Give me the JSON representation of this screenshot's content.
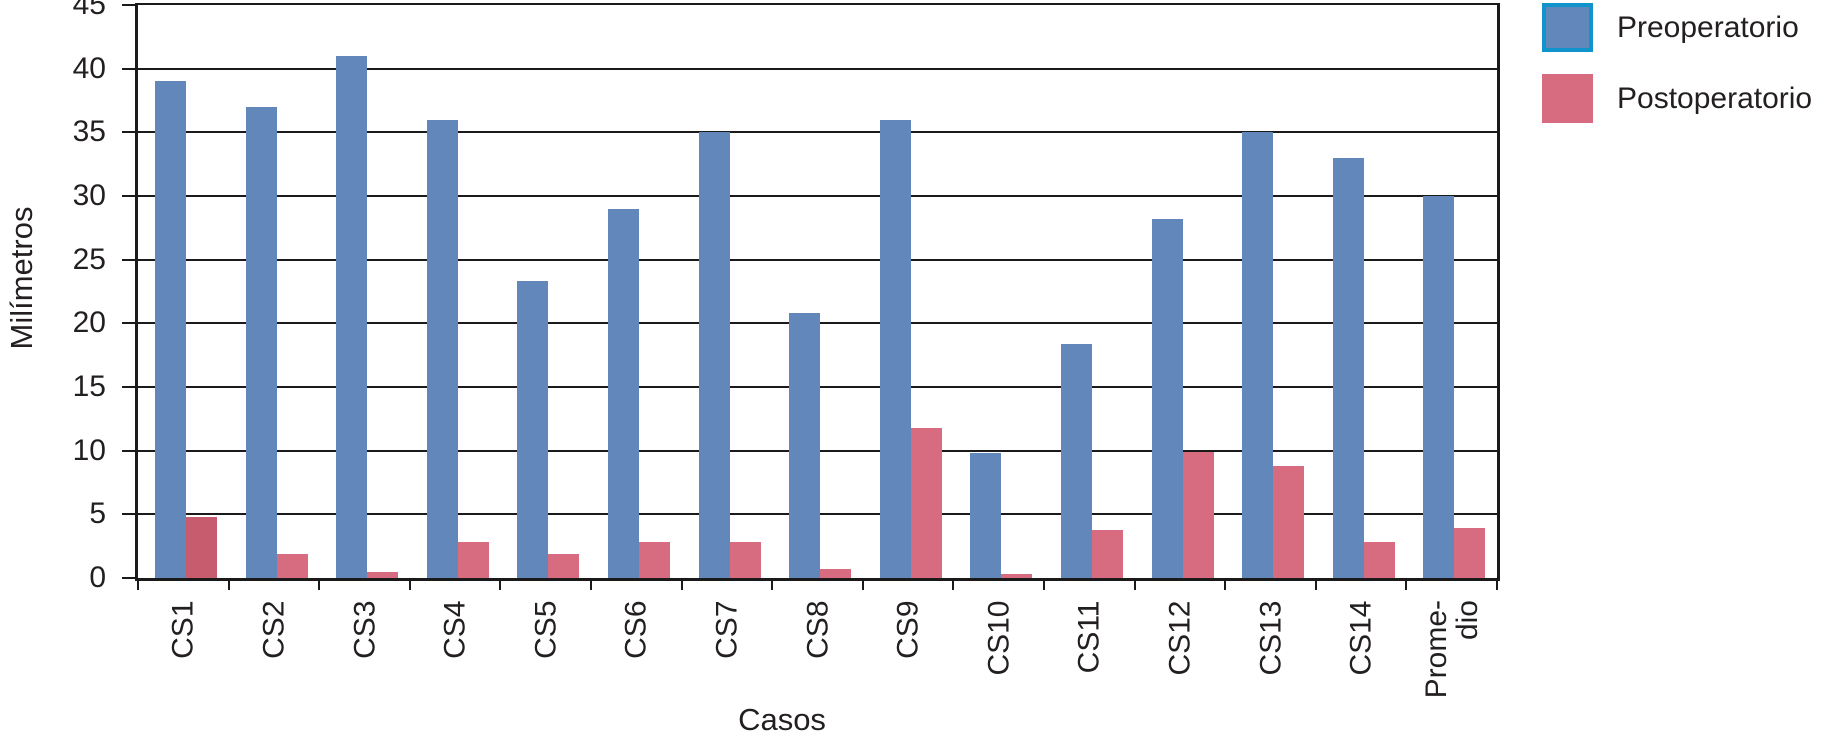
{
  "chart_data": {
    "type": "bar",
    "title": "",
    "xlabel": "Casos",
    "ylabel": "Milímetros",
    "ylim": [
      0,
      45
    ],
    "yticks": [
      0,
      5,
      10,
      15,
      20,
      25,
      30,
      35,
      40,
      45
    ],
    "grid": "horizontal gridlines every 5 units, black",
    "categories": [
      "CS1",
      "CS2",
      "CS3",
      "CS4",
      "CS5",
      "CS6",
      "CS7",
      "CS8",
      "CS9",
      "CS10",
      "CS11",
      "CS12",
      "CS13",
      "CS14",
      "Promedio"
    ],
    "tick_labels": [
      "CS1",
      "CS2",
      "CS3",
      "CS4",
      "CS5",
      "CS6",
      "CS7",
      "CS8",
      "CS9",
      "CS10",
      "CS11",
      "CS12",
      "CS13",
      "CS14",
      "Prome-\ndio"
    ],
    "tick_label_rotation_deg": -90,
    "series": [
      {
        "name": "Preoperatorio",
        "color": "#6287bb",
        "values": [
          39,
          37,
          41,
          36,
          23.3,
          29,
          35,
          20.8,
          36,
          9.8,
          18.4,
          28.2,
          35,
          33,
          30
        ]
      },
      {
        "name": "Postoperatorio",
        "color": "#d76c80",
        "values": [
          4.8,
          1.9,
          0.5,
          2.8,
          1.9,
          2.8,
          2.8,
          0.7,
          11.8,
          0.3,
          3.8,
          9.9,
          8.8,
          2.8,
          3.9
        ],
        "color_overrides": [
          {
            "category": "CS1",
            "color": "#c65c6e"
          }
        ]
      }
    ],
    "legend": {
      "position": "outside-top-right",
      "swatch_borders": {
        "Preoperatorio": "#1193cc",
        "Postoperatorio": "none"
      }
    },
    "style": {
      "axis_color": "#1a1a1a",
      "grid_color": "#1a1a1a",
      "text_color": "#231f20",
      "background": "#ffffff"
    }
  }
}
